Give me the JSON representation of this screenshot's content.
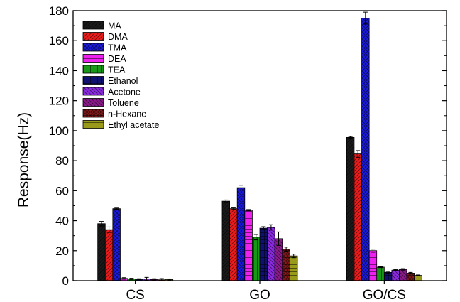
{
  "chart_data": {
    "type": "bar",
    "title": "",
    "xlabel": "",
    "ylabel": "Response(Hz)",
    "ylim": [
      0,
      180
    ],
    "yticks": [
      0,
      20,
      40,
      60,
      80,
      100,
      120,
      140,
      160,
      180
    ],
    "grid": false,
    "legend_position": "top-left",
    "categories": [
      "CS",
      "GO",
      "GO/CS"
    ],
    "series": [
      {
        "name": "MA",
        "color": "#1a1a1a",
        "pattern": "hatch-up",
        "values": [
          38,
          53,
          95.5
        ],
        "errors": [
          1.5,
          0.8,
          0.6
        ]
      },
      {
        "name": "DMA",
        "color": "#ee1c1c",
        "pattern": "hatch-up",
        "values": [
          34,
          48,
          84.5
        ],
        "errors": [
          1.8,
          0.5,
          2.2
        ]
      },
      {
        "name": "TMA",
        "color": "#1c1cee",
        "pattern": "hatch-cross",
        "values": [
          48,
          62,
          175
        ],
        "errors": [
          0.4,
          1.6,
          4.0
        ]
      },
      {
        "name": "DEA",
        "color": "#ee22ee",
        "pattern": "hatch-horizontal",
        "values": [
          1.5,
          47,
          20
        ],
        "errors": [
          0.5,
          0.4,
          1.0
        ]
      },
      {
        "name": "TEA",
        "color": "#179917",
        "pattern": "hatch-vertical",
        "values": [
          1.2,
          29,
          9
        ],
        "errors": [
          0.4,
          1.8,
          0.3
        ]
      },
      {
        "name": "Ethanol",
        "color": "#101070",
        "pattern": "grid",
        "values": [
          1,
          35,
          5.5
        ],
        "errors": [
          0.3,
          1.0,
          0.6
        ]
      },
      {
        "name": "Acetone",
        "color": "#8b2be2",
        "pattern": "hatch-down",
        "values": [
          1.2,
          35.5,
          7
        ],
        "errors": [
          1.0,
          1.8,
          0.4
        ]
      },
      {
        "name": "Toluene",
        "color": "#8b1a8b",
        "pattern": "hatch-down",
        "values": [
          0.8,
          28,
          7.5
        ],
        "errors": [
          0.5,
          4.5,
          0.5
        ]
      },
      {
        "name": "n-Hexane",
        "color": "#8b1a1a",
        "pattern": "crosshatch",
        "values": [
          0.6,
          21,
          5
        ],
        "errors": [
          0.8,
          1.4,
          0.5
        ]
      },
      {
        "name": "Ethyl acetate",
        "color": "#9a9a1a",
        "pattern": "hatch-horizontal",
        "values": [
          0.8,
          16.5,
          3.5
        ],
        "errors": [
          0.4,
          1.2,
          0.3
        ]
      }
    ]
  }
}
